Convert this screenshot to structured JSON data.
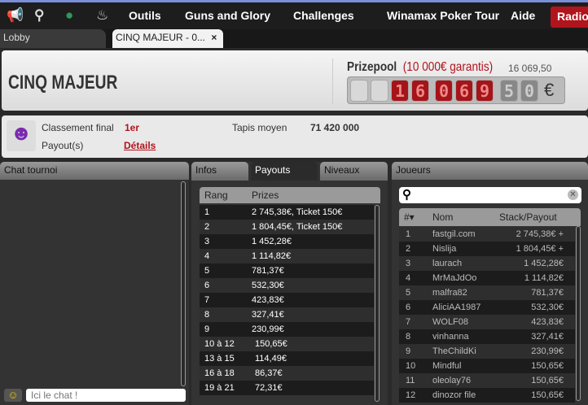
{
  "topbar": {
    "icons": [
      "megaphone-icon",
      "search-icon",
      "user-icon",
      "flame-icon"
    ],
    "menu": [
      "Outils",
      "Guns and Glory",
      "Challenges",
      "Winamax Poker Tour",
      "Aide"
    ],
    "radio": "Radio"
  },
  "tabs": {
    "lobby": "Lobby",
    "tournament": "CINQ MAJEUR - 0...",
    "close": "×"
  },
  "header": {
    "title": "CINQ MAJEUR",
    "prizepool_label": "Prizepool",
    "guarantee": "(10 000€ garantis)",
    "prizepool_digits": [
      "",
      "",
      "1",
      "6",
      "0",
      "6",
      "9",
      "5",
      "0"
    ],
    "prizepool_value": "16 069,50",
    "currency": "€"
  },
  "info": {
    "classement_label": "Classement final",
    "classement_value": "1er",
    "payout_label": "Payout(s)",
    "payout_link": "Détails",
    "tapis_label": "Tapis moyen",
    "tapis_value": "71 420 000"
  },
  "chat": {
    "title": "Chat tournoi",
    "placeholder": "Ici le chat !"
  },
  "payouts": {
    "tabs": [
      "Infos",
      "Payouts",
      "Niveaux"
    ],
    "active_tab": "Payouts",
    "columns": [
      "Rang",
      "Prizes"
    ],
    "rows": [
      [
        "1",
        "2 745,38€, Ticket 150€"
      ],
      [
        "2",
        "1 804,45€, Ticket 150€"
      ],
      [
        "3",
        "1 452,28€"
      ],
      [
        "4",
        "1 114,82€"
      ],
      [
        "5",
        "781,37€"
      ],
      [
        "6",
        "532,30€"
      ],
      [
        "7",
        "423,83€"
      ],
      [
        "8",
        "327,41€"
      ],
      [
        "9",
        "230,99€"
      ],
      [
        "10 à 12",
        "150,65€"
      ],
      [
        "13 à 15",
        "114,49€"
      ],
      [
        "16 à 18",
        "86,37€"
      ],
      [
        "19 à 21",
        "72,31€"
      ]
    ]
  },
  "joueurs": {
    "title": "Joueurs",
    "search_value": "",
    "columns": [
      "#▾",
      "Nom",
      "Stack/Payout"
    ],
    "rows": [
      [
        "1",
        "fastgil.com",
        "2 745,38€ +"
      ],
      [
        "2",
        "Nislija",
        "1 804,45€ +"
      ],
      [
        "3",
        "laurach",
        "1 452,28€"
      ],
      [
        "4",
        "MrMaJdOo",
        "1 114,82€"
      ],
      [
        "5",
        "malfra82",
        "781,37€"
      ],
      [
        "6",
        "AliciAA1987",
        "532,30€"
      ],
      [
        "7",
        "WOLF08",
        "423,83€"
      ],
      [
        "8",
        "vinhanna",
        "327,41€"
      ],
      [
        "9",
        "TheChildKi",
        "230,99€"
      ],
      [
        "10",
        "Mindful",
        "150,65€"
      ],
      [
        "11",
        "oleolay76",
        "150,65€"
      ],
      [
        "12",
        "dinozor file",
        "150,65€"
      ]
    ]
  }
}
